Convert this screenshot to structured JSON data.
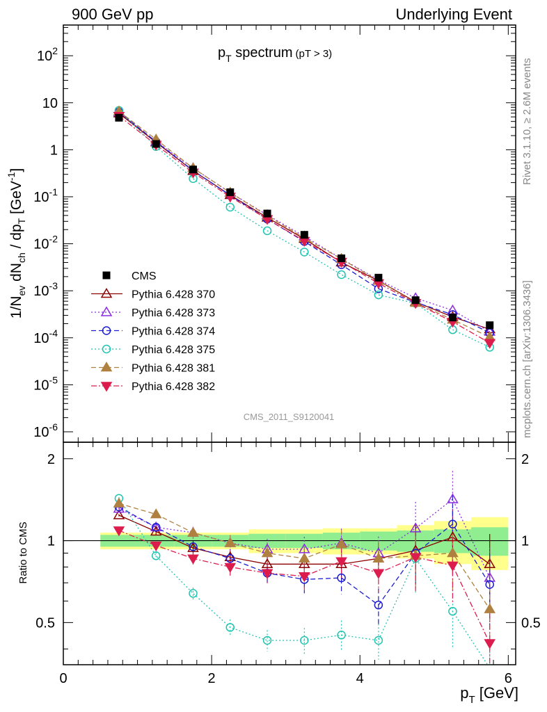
{
  "header": {
    "left": "900 GeV pp",
    "right": "Underlying Event"
  },
  "side_labels": {
    "rivet": "Rivet 3.1.10, ≥ 2.6M events",
    "mcplots": "mcplots.cern.ch [arXiv:1306.3436]"
  },
  "main_plot": {
    "title_main": "p",
    "title_sub": "T",
    "title_rest": " spectrum",
    "title_cut": "(pT >  3)",
    "ylabel": "1/N_ev dN_ch / dp_T [GeV^-1]",
    "watermark": "CMS_2011_S9120041"
  },
  "ratio_plot": {
    "ylabel": "Ratio to CMS"
  },
  "xaxis_label": "p_T [GeV]",
  "chart_data": {
    "type": "scatter",
    "x": [
      0.75,
      1.25,
      1.75,
      2.25,
      2.75,
      3.25,
      3.75,
      4.25,
      4.75,
      5.25,
      5.75
    ],
    "xlim": [
      0,
      6.1
    ],
    "ylim_main": [
      6e-07,
      450
    ],
    "yscale_main": "log",
    "ylim_ratio": [
      0.35,
      2.3
    ],
    "ytick_labels_main": [
      "10^-6",
      "10^-5",
      "10^-4",
      "10^-3",
      "10^-2",
      "10^-1",
      "1",
      "10",
      "10^2"
    ],
    "ytick_labels_ratio": [
      "0.5",
      "1",
      "2"
    ],
    "xtick_labels": [
      "0",
      "2",
      "4",
      "6"
    ],
    "legend_position": "left",
    "reference": {
      "name": "CMS",
      "values": [
        4.8,
        1.33,
        0.38,
        0.125,
        0.044,
        0.0155,
        0.0049,
        0.0019,
        0.00063,
        0.00027,
        0.000185
      ],
      "band_inner": [
        0.05,
        0.05,
        0.05,
        0.05,
        0.06,
        0.06,
        0.07,
        0.08,
        0.09,
        0.1,
        0.12
      ],
      "band_outer": [
        0.07,
        0.07,
        0.07,
        0.07,
        0.1,
        0.1,
        0.11,
        0.11,
        0.14,
        0.18,
        0.22
      ]
    },
    "series": [
      {
        "name": "Pythia 6.428 370",
        "color": "#8b0000",
        "marker": "triangle-open",
        "dash": "solid",
        "ratio": [
          1.24,
          1.08,
          0.94,
          0.87,
          0.82,
          0.82,
          0.82,
          0.86,
          0.92,
          1.03,
          0.82
        ]
      },
      {
        "name": "Pythia 6.428 373",
        "color": "#8a2be2",
        "marker": "triangle-open",
        "dash": "dotted",
        "ratio": [
          1.31,
          1.12,
          1.07,
          0.98,
          0.93,
          0.93,
          0.98,
          0.9,
          1.11,
          1.42,
          0.73
        ]
      },
      {
        "name": "Pythia 6.428 374",
        "color": "#1c1cd0",
        "marker": "circle-open",
        "dash": "dashed",
        "ratio": [
          1.33,
          1.12,
          0.95,
          0.86,
          0.76,
          0.72,
          0.73,
          0.58,
          0.9,
          1.15,
          0.69
        ]
      },
      {
        "name": "Pythia 6.428 375",
        "color": "#20c4b0",
        "marker": "circle-open",
        "dash": "dotted",
        "ratio": [
          1.43,
          0.88,
          0.64,
          0.48,
          0.43,
          0.43,
          0.45,
          0.43,
          0.86,
          0.55,
          0.34
        ]
      },
      {
        "name": "Pythia 6.428 381",
        "color": "#b08040",
        "marker": "triangle-filled",
        "dash": "dashed",
        "ratio": [
          1.37,
          1.25,
          1.07,
          0.98,
          0.9,
          0.86,
          0.97,
          0.86,
          0.88,
          0.9,
          0.56
        ]
      },
      {
        "name": "Pythia 6.428 382",
        "color": "#dc1c4c",
        "marker": "triangle-down-filled",
        "dash": "dashdot",
        "ratio": [
          1.09,
          0.96,
          0.86,
          0.8,
          0.76,
          0.74,
          0.84,
          0.76,
          0.87,
          0.81,
          0.42
        ]
      }
    ]
  }
}
